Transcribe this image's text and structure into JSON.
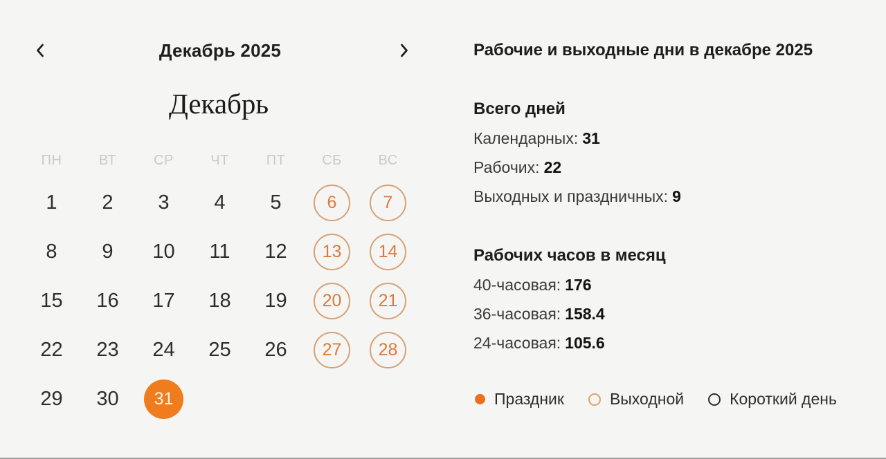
{
  "calendar": {
    "nav_title": "Декабрь 2025",
    "month_title": "Декабрь",
    "prev_icon": "chevron-left-icon",
    "next_icon": "chevron-right-icon",
    "day_headers": [
      "ПН",
      "ВТ",
      "СР",
      "ЧТ",
      "ПТ",
      "СБ",
      "ВС"
    ],
    "days": [
      {
        "d": "1",
        "type": "work"
      },
      {
        "d": "2",
        "type": "work"
      },
      {
        "d": "3",
        "type": "work"
      },
      {
        "d": "4",
        "type": "work"
      },
      {
        "d": "5",
        "type": "work"
      },
      {
        "d": "6",
        "type": "weekend"
      },
      {
        "d": "7",
        "type": "weekend"
      },
      {
        "d": "8",
        "type": "work"
      },
      {
        "d": "9",
        "type": "work"
      },
      {
        "d": "10",
        "type": "work"
      },
      {
        "d": "11",
        "type": "work"
      },
      {
        "d": "12",
        "type": "work"
      },
      {
        "d": "13",
        "type": "weekend"
      },
      {
        "d": "14",
        "type": "weekend"
      },
      {
        "d": "15",
        "type": "work"
      },
      {
        "d": "16",
        "type": "work"
      },
      {
        "d": "17",
        "type": "work"
      },
      {
        "d": "18",
        "type": "work"
      },
      {
        "d": "19",
        "type": "work"
      },
      {
        "d": "20",
        "type": "weekend"
      },
      {
        "d": "21",
        "type": "weekend"
      },
      {
        "d": "22",
        "type": "work"
      },
      {
        "d": "23",
        "type": "work"
      },
      {
        "d": "24",
        "type": "work"
      },
      {
        "d": "25",
        "type": "work"
      },
      {
        "d": "26",
        "type": "work"
      },
      {
        "d": "27",
        "type": "weekend"
      },
      {
        "d": "28",
        "type": "weekend"
      },
      {
        "d": "29",
        "type": "work"
      },
      {
        "d": "30",
        "type": "work"
      },
      {
        "d": "31",
        "type": "holiday"
      }
    ]
  },
  "panel": {
    "title": "Рабочие и выходные дни в декабре 2025",
    "total": {
      "heading": "Всего дней",
      "items": [
        {
          "label": "Календарных:",
          "value": "31"
        },
        {
          "label": "Рабочих:",
          "value": "22"
        },
        {
          "label": "Выходных и праздничных:",
          "value": "9"
        }
      ]
    },
    "hours": {
      "heading": "Рабочих часов в месяц",
      "items": [
        {
          "label": "40-часовая:",
          "value": "176"
        },
        {
          "label": "36-часовая:",
          "value": "158.4"
        },
        {
          "label": "24-часовая:",
          "value": "105.6"
        }
      ]
    }
  },
  "legend": {
    "items": [
      {
        "label": "Праздник",
        "type": "holiday",
        "swatch": "filled-orange-dot-icon"
      },
      {
        "label": "Выходной",
        "type": "weekend",
        "swatch": "orange-outline-circle-icon"
      },
      {
        "label": "Короткий день",
        "type": "short-day",
        "swatch": "dark-outline-circle-icon"
      }
    ]
  },
  "colors": {
    "background": "#f5f5f4",
    "holiday_fill": "#ef7c1d",
    "weekend_circle_border": "#d6a176",
    "weekend_number": "#db7a3c",
    "short_day_border": "#2d2d2d",
    "day_header_gray": "#c9c9c9"
  }
}
